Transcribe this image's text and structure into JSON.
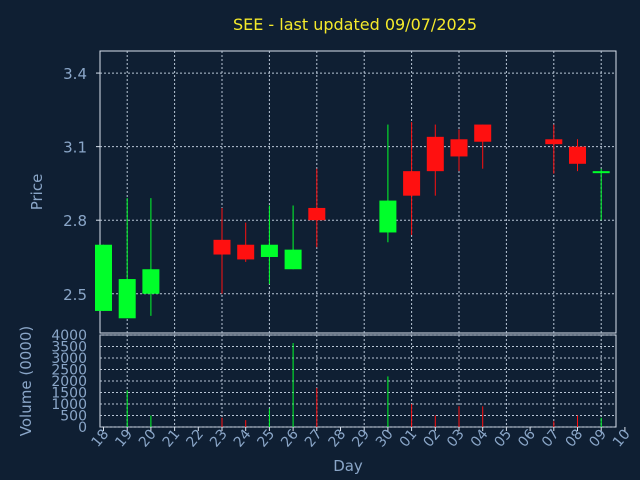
{
  "chart_data": [
    {
      "type": "candlestick",
      "title": "SEE - last updated 09/07/2025",
      "ylabel": "Price",
      "xlabel": "Day",
      "ylim": [
        2.34,
        3.49
      ],
      "yticks": [
        2.5,
        2.8,
        3.1,
        3.4
      ],
      "ytick_labels": [
        "2.5",
        "2.8",
        "3.1",
        "3.4"
      ],
      "up_color": "#00ff2a",
      "down_color": "#ff1010",
      "grid": true,
      "categories": [
        "18",
        "19",
        "20",
        "21",
        "22",
        "23",
        "24",
        "25",
        "26",
        "27",
        "28",
        "29",
        "30",
        "01",
        "02",
        "03",
        "04",
        "05",
        "06",
        "07",
        "08",
        "09",
        "10"
      ],
      "candles": [
        {
          "day": "18",
          "open": 2.43,
          "high": 2.7,
          "low": 2.43,
          "close": 2.7
        },
        {
          "day": "19",
          "open": 2.4,
          "high": 2.89,
          "low": 2.4,
          "close": 2.56
        },
        {
          "day": "20",
          "open": 2.5,
          "high": 2.89,
          "low": 2.41,
          "close": 2.6
        },
        {
          "day": "23",
          "open": 2.72,
          "high": 2.85,
          "low": 2.5,
          "close": 2.66
        },
        {
          "day": "24",
          "open": 2.7,
          "high": 2.79,
          "low": 2.63,
          "close": 2.64
        },
        {
          "day": "25",
          "open": 2.65,
          "high": 2.86,
          "low": 2.54,
          "close": 2.7
        },
        {
          "day": "26",
          "open": 2.6,
          "high": 2.86,
          "low": 2.6,
          "close": 2.68
        },
        {
          "day": "27",
          "open": 2.85,
          "high": 3.01,
          "low": 2.69,
          "close": 2.8
        },
        {
          "day": "30",
          "open": 2.75,
          "high": 3.19,
          "low": 2.71,
          "close": 2.88
        },
        {
          "day": "01",
          "open": 3.0,
          "high": 3.2,
          "low": 2.74,
          "close": 2.9
        },
        {
          "day": "02",
          "open": 3.14,
          "high": 3.19,
          "low": 2.9,
          "close": 3.0
        },
        {
          "day": "03",
          "open": 3.13,
          "high": 3.17,
          "low": 3.0,
          "close": 3.06
        },
        {
          "day": "04",
          "open": 3.19,
          "high": 3.19,
          "low": 3.01,
          "close": 3.12
        },
        {
          "day": "07",
          "open": 3.13,
          "high": 3.19,
          "low": 2.99,
          "close": 3.11
        },
        {
          "day": "08",
          "open": 3.1,
          "high": 3.13,
          "low": 3.0,
          "close": 3.03
        },
        {
          "day": "09",
          "open": 3.0,
          "high": 3.01,
          "low": 2.8,
          "close": 3.0
        }
      ]
    },
    {
      "type": "bar",
      "ylabel": "Volume (0000)",
      "ylim": [
        0,
        4000
      ],
      "yticks": [
        0,
        500,
        1000,
        1500,
        2000,
        2500,
        3000,
        3500,
        4000
      ],
      "ytick_labels": [
        "0",
        "500",
        "1000",
        "1500",
        "2000",
        "2500",
        "3000",
        "3500",
        "4000"
      ],
      "categories": [
        "19",
        "20",
        "23",
        "24",
        "25",
        "26",
        "27",
        "30",
        "01",
        "02",
        "03",
        "04",
        "07",
        "08",
        "09"
      ],
      "values": [
        1600,
        500,
        400,
        300,
        800,
        3650,
        1700,
        2200,
        1000,
        500,
        900,
        900,
        250,
        500,
        400
      ],
      "colors": [
        "green",
        "green",
        "red",
        "red",
        "green",
        "green",
        "red",
        "green",
        "red",
        "red",
        "red",
        "red",
        "red",
        "red",
        "green"
      ]
    }
  ]
}
